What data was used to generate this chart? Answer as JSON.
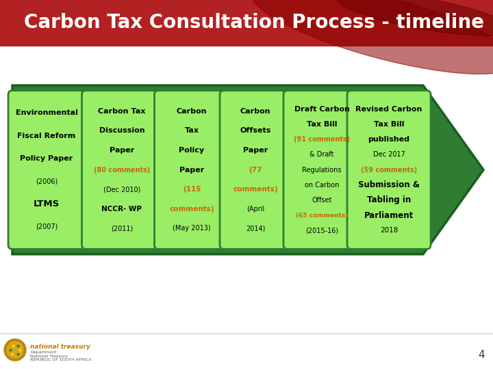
{
  "title": "Carbon Tax Consultation Process - timeline",
  "title_color": "#FFFFFF",
  "title_bg_color": "#B22222",
  "background_color": "#FFFFFF",
  "arrow_color": "#2E7D32",
  "arrow_edge_color": "#1B5E20",
  "box_fill_color": "#99EE66",
  "box_edge_color": "#2E7D32",
  "page_number": "4",
  "steps": [
    {
      "main_text": "Environmental\nFiscal Reform\nPolicy Paper",
      "sub_lines": [
        {
          "text": "(2006)",
          "color": "#000000",
          "bold": false,
          "size": 7.0
        },
        {
          "text": "LTMS",
          "color": "#000000",
          "bold": true,
          "size": 9.5
        },
        {
          "text": "(2007)",
          "color": "#000000",
          "bold": false,
          "size": 7.0
        }
      ]
    },
    {
      "main_text": "Carbon Tax\nDiscussion\nPaper",
      "sub_lines": [
        {
          "text": "(80 comments)",
          "color": "#CC6600",
          "bold": true,
          "size": 7.0
        },
        {
          "text": "(Dec 2010)",
          "color": "#000000",
          "bold": false,
          "size": 7.0
        },
        {
          "text": "NCCR- WP",
          "color": "#000000",
          "bold": true,
          "size": 7.5
        },
        {
          "text": "(2011)",
          "color": "#000000",
          "bold": false,
          "size": 7.0
        }
      ]
    },
    {
      "main_text": "Carbon\nTax\nPolicy\nPaper",
      "sub_lines": [
        {
          "text": "(115",
          "color": "#CC6600",
          "bold": true,
          "size": 7.5
        },
        {
          "text": "comments)",
          "color": "#CC6600",
          "bold": true,
          "size": 7.5
        },
        {
          "text": "(May 2013)",
          "color": "#000000",
          "bold": false,
          "size": 7.0
        }
      ]
    },
    {
      "main_text": "Carbon\nOffsets\nPaper",
      "sub_lines": [
        {
          "text": "(77",
          "color": "#CC6600",
          "bold": true,
          "size": 7.5
        },
        {
          "text": "comments)",
          "color": "#CC6600",
          "bold": true,
          "size": 7.5
        },
        {
          "text": "(April",
          "color": "#000000",
          "bold": false,
          "size": 7.0
        },
        {
          "text": "2014)",
          "color": "#000000",
          "bold": false,
          "size": 7.0
        }
      ]
    },
    {
      "main_text": "Draft Carbon\nTax Bill",
      "sub_lines": [
        {
          "text": "(91 comments)",
          "color": "#CC6600",
          "bold": true,
          "size": 7.0
        },
        {
          "text": "& Draft",
          "color": "#000000",
          "bold": false,
          "size": 7.0
        },
        {
          "text": "Regulations",
          "color": "#000000",
          "bold": false,
          "size": 7.0
        },
        {
          "text": "on Carbon",
          "color": "#000000",
          "bold": false,
          "size": 7.0
        },
        {
          "text": "Offset",
          "color": "#000000",
          "bold": false,
          "size": 7.0
        },
        {
          "text": "(65 comments)",
          "color": "#CC6600",
          "bold": true,
          "size": 6.5
        },
        {
          "text": "(2015-16)",
          "color": "#000000",
          "bold": false,
          "size": 7.0
        }
      ]
    },
    {
      "main_text": "Revised Carbon\nTax Bill\npublished",
      "sub_lines": [
        {
          "text": "Dec 2017",
          "color": "#000000",
          "bold": false,
          "size": 7.0
        },
        {
          "text": "(59 comments)",
          "color": "#CC6600",
          "bold": true,
          "size": 7.0
        },
        {
          "text": "Submission &",
          "color": "#000000",
          "bold": true,
          "size": 8.5
        },
        {
          "text": "Tabling in",
          "color": "#000000",
          "bold": true,
          "size": 8.5
        },
        {
          "text": "Parliament",
          "color": "#000000",
          "bold": true,
          "size": 8.5
        },
        {
          "text": "2018",
          "color": "#000000",
          "bold": false,
          "size": 7.5
        }
      ]
    }
  ]
}
